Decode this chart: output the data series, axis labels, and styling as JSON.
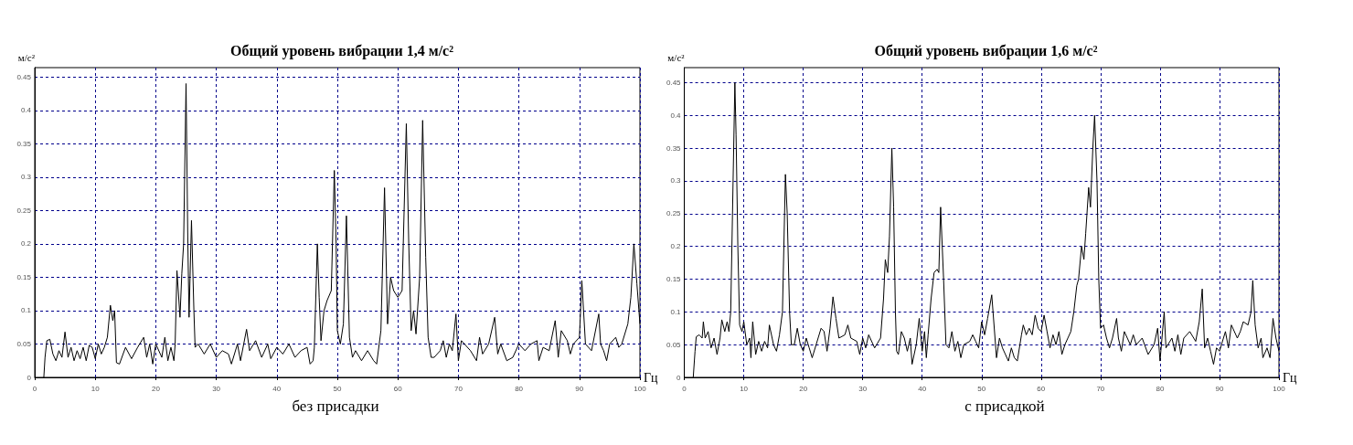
{
  "chart_data": [
    {
      "type": "line",
      "title": "Общий уровень вибрации 1,4 м/с²",
      "xlabel": "Гц",
      "ylabel": "м/с²",
      "annotations": [
        "без присадки"
      ],
      "xlim": [
        0,
        100
      ],
      "xticks": [
        0,
        10,
        20,
        30,
        40,
        50,
        60,
        70,
        80,
        90,
        100
      ],
      "ylim": [
        0,
        0.464
      ],
      "yticks": [
        0,
        0.05,
        0.1,
        0.15,
        0.2,
        0.25,
        0.3,
        0.35,
        0.4,
        0.45
      ],
      "grid": true,
      "series": [
        {
          "color": "#000000",
          "x": [
            1.5,
            1.7,
            2,
            2.5,
            3,
            3.5,
            4,
            4.5,
            5,
            5.5,
            6,
            6.5,
            7,
            7.5,
            8,
            8.5,
            9,
            9.5,
            10,
            10.5,
            11,
            11.5,
            12,
            12.5,
            12.9,
            13.2,
            13.5,
            14,
            15,
            16,
            17,
            18,
            18.5,
            19,
            19.5,
            20,
            21,
            21.5,
            22,
            22.5,
            23,
            23.2,
            23.5,
            24,
            24.3,
            24.6,
            25,
            25.3,
            25.5,
            25.9,
            26.3,
            26.5,
            27,
            28,
            29,
            30,
            31,
            32,
            32.5,
            33.5,
            34,
            35,
            35.5,
            36.5,
            37.5,
            38.5,
            39,
            40,
            41,
            42,
            43,
            44,
            45,
            45.5,
            46,
            46.2,
            46.7,
            47,
            47.3,
            47.8,
            48.3,
            49,
            49.5,
            49.8,
            50,
            50.5,
            51,
            51.5,
            52,
            52.5,
            53,
            54,
            55,
            56,
            56.5,
            57.2,
            57.8,
            58.3,
            58.8,
            59.3,
            60,
            60.7,
            61.4,
            61.8,
            62.2,
            62.6,
            63,
            63.6,
            64.1,
            64.6,
            65,
            65.5,
            66,
            67,
            67.5,
            68,
            68.5,
            69,
            69.6,
            70,
            70.5,
            72,
            73,
            73.5,
            74,
            75,
            76,
            76.5,
            77,
            78,
            79,
            80,
            81,
            82,
            83,
            83.3,
            84,
            85,
            86,
            86.5,
            87,
            88,
            88.5,
            89,
            90,
            90.4,
            91,
            92,
            93.2,
            93.5,
            94,
            94.5,
            95,
            96,
            96.5,
            97,
            98,
            98.5,
            99,
            99.5,
            100
          ],
          "values": [
            0,
            0.03,
            0.055,
            0.057,
            0.035,
            0.025,
            0.04,
            0.03,
            0.068,
            0.03,
            0.045,
            0.025,
            0.04,
            0.028,
            0.045,
            0.025,
            0.048,
            0.045,
            0.028,
            0.05,
            0.035,
            0.045,
            0.06,
            0.108,
            0.085,
            0.1,
            0.022,
            0.02,
            0.045,
            0.028,
            0.045,
            0.06,
            0.03,
            0.05,
            0.02,
            0.05,
            0.03,
            0.06,
            0.025,
            0.045,
            0.025,
            0.05,
            0.16,
            0.09,
            0.155,
            0.2,
            0.44,
            0.2,
            0.09,
            0.235,
            0.1,
            0.045,
            0.05,
            0.035,
            0.05,
            0.03,
            0.04,
            0.035,
            0.02,
            0.05,
            0.025,
            0.072,
            0.04,
            0.055,
            0.03,
            0.05,
            0.028,
            0.045,
            0.035,
            0.05,
            0.03,
            0.04,
            0.045,
            0.02,
            0.025,
            0.045,
            0.2,
            0.12,
            0.055,
            0.1,
            0.115,
            0.13,
            0.31,
            0.2,
            0.07,
            0.05,
            0.08,
            0.242,
            0.06,
            0.03,
            0.04,
            0.025,
            0.04,
            0.025,
            0.02,
            0.07,
            0.284,
            0.08,
            0.15,
            0.13,
            0.12,
            0.13,
            0.38,
            0.2,
            0.07,
            0.1,
            0.065,
            0.15,
            0.385,
            0.18,
            0.06,
            0.03,
            0.03,
            0.04,
            0.055,
            0.03,
            0.05,
            0.04,
            0.095,
            0.025,
            0.055,
            0.04,
            0.025,
            0.06,
            0.035,
            0.05,
            0.09,
            0.035,
            0.05,
            0.025,
            0.03,
            0.05,
            0.04,
            0.05,
            0.055,
            0.025,
            0.045,
            0.04,
            0.085,
            0.03,
            0.07,
            0.055,
            0.035,
            0.05,
            0.06,
            0.145,
            0.05,
            0.04,
            0.095,
            0.05,
            0.04,
            0.025,
            0.05,
            0.06,
            0.045,
            0.05,
            0.08,
            0.12,
            0.2,
            0.14,
            0.08
          ]
        }
      ]
    },
    {
      "type": "line",
      "title": "Общий уровень вибрации 1,6 м/с²",
      "xlabel": "Гц",
      "ylabel": "м/с²",
      "annotations": [
        "с присадкой"
      ],
      "xlim": [
        0,
        100
      ],
      "xticks": [
        0,
        10,
        20,
        30,
        40,
        50,
        60,
        70,
        80,
        90,
        100
      ],
      "ylim": [
        0,
        0.473
      ],
      "yticks": [
        0,
        0.05,
        0.1,
        0.15,
        0.2,
        0.25,
        0.3,
        0.35,
        0.4,
        0.45
      ],
      "grid": true,
      "series": [
        {
          "color": "#000000",
          "x": [
            1.5,
            1.8,
            2,
            2.5,
            3,
            3.2,
            3.5,
            4,
            4.5,
            5,
            5.5,
            6,
            6.3,
            6.8,
            7.2,
            7.5,
            7.8,
            8.2,
            8.5,
            8.7,
            9,
            9.3,
            9.7,
            10,
            10.5,
            11,
            11.2,
            11.5,
            12,
            12.5,
            13,
            13.5,
            14,
            14.3,
            15,
            15.5,
            16,
            16.5,
            17,
            17.3,
            17.7,
            18,
            18.5,
            19,
            19.5,
            20,
            20.5,
            21,
            21.5,
            22.5,
            23,
            23.5,
            24,
            24.5,
            25,
            25.5,
            26,
            27,
            27.5,
            28,
            29,
            29.5,
            30,
            30.5,
            31,
            32,
            33,
            33.5,
            33.8,
            34.2,
            34.5,
            34.9,
            35.2,
            35.5,
            35.7,
            36,
            36.5,
            37,
            37.5,
            38,
            38.3,
            39,
            39.5,
            40,
            40.4,
            40.7,
            41,
            41.5,
            42,
            42.5,
            42.8,
            43.1,
            43.6,
            44,
            44.5,
            45,
            45.5,
            46,
            46.5,
            47,
            48,
            48.5,
            49,
            49.5,
            50,
            50.5,
            51,
            51.7,
            52.5,
            53,
            53.5,
            54,
            54.5,
            55,
            55.5,
            56,
            56.7,
            57,
            57.5,
            58,
            58.5,
            59,
            59.5,
            60,
            60.5,
            61,
            61.5,
            62,
            62.5,
            63,
            63.5,
            64,
            64.5,
            65,
            65.5,
            66,
            66.3,
            66.8,
            67.2,
            67.5,
            68,
            68.3,
            68.7,
            69,
            69.4,
            69.7,
            70,
            70.5,
            71,
            71.5,
            72,
            72.7,
            73,
            73.5,
            74,
            75,
            75.5,
            76,
            77,
            78,
            79,
            79.6,
            80,
            80.7,
            81,
            82,
            82.5,
            83,
            83.5,
            84,
            85,
            86,
            86.6,
            87.1,
            87.5,
            88,
            88.5,
            89,
            89.5,
            90,
            91,
            91.5,
            92,
            93,
            93.5,
            94,
            94.8,
            95.3,
            95.6,
            96,
            96.5,
            97,
            97.3,
            98,
            98.5,
            99,
            99.5,
            100
          ],
          "values": [
            0,
            0.04,
            0.062,
            0.065,
            0.06,
            0.085,
            0.06,
            0.07,
            0.045,
            0.06,
            0.035,
            0.06,
            0.088,
            0.07,
            0.085,
            0.07,
            0.1,
            0.3,
            0.45,
            0.37,
            0.2,
            0.08,
            0.07,
            0.085,
            0.05,
            0.06,
            0.03,
            0.085,
            0.035,
            0.055,
            0.04,
            0.055,
            0.045,
            0.08,
            0.05,
            0.04,
            0.065,
            0.1,
            0.31,
            0.25,
            0.1,
            0.05,
            0.05,
            0.075,
            0.05,
            0.04,
            0.06,
            0.045,
            0.03,
            0.06,
            0.075,
            0.07,
            0.04,
            0.075,
            0.123,
            0.09,
            0.06,
            0.065,
            0.08,
            0.06,
            0.055,
            0.035,
            0.06,
            0.045,
            0.065,
            0.045,
            0.06,
            0.12,
            0.18,
            0.16,
            0.215,
            0.35,
            0.26,
            0.1,
            0.04,
            0.035,
            0.07,
            0.06,
            0.04,
            0.06,
            0.02,
            0.05,
            0.09,
            0.04,
            0.07,
            0.03,
            0.065,
            0.12,
            0.16,
            0.165,
            0.16,
            0.26,
            0.15,
            0.05,
            0.045,
            0.07,
            0.04,
            0.055,
            0.03,
            0.05,
            0.055,
            0.065,
            0.055,
            0.045,
            0.085,
            0.065,
            0.09,
            0.126,
            0.03,
            0.06,
            0.045,
            0.035,
            0.025,
            0.045,
            0.03,
            0.025,
            0.065,
            0.08,
            0.065,
            0.075,
            0.065,
            0.095,
            0.075,
            0.07,
            0.095,
            0.07,
            0.045,
            0.065,
            0.05,
            0.07,
            0.035,
            0.05,
            0.06,
            0.07,
            0.1,
            0.14,
            0.15,
            0.2,
            0.18,
            0.22,
            0.29,
            0.26,
            0.35,
            0.4,
            0.3,
            0.15,
            0.075,
            0.08,
            0.06,
            0.045,
            0.06,
            0.09,
            0.06,
            0.04,
            0.07,
            0.05,
            0.065,
            0.05,
            0.06,
            0.035,
            0.05,
            0.075,
            0.025,
            0.1,
            0.045,
            0.06,
            0.04,
            0.065,
            0.035,
            0.06,
            0.07,
            0.055,
            0.085,
            0.135,
            0.045,
            0.06,
            0.04,
            0.02,
            0.045,
            0.04,
            0.07,
            0.045,
            0.08,
            0.06,
            0.07,
            0.085,
            0.08,
            0.1,
            0.148,
            0.08,
            0.045,
            0.06,
            0.03,
            0.045,
            0.03,
            0.09,
            0.06,
            0.04
          ]
        }
      ]
    }
  ]
}
